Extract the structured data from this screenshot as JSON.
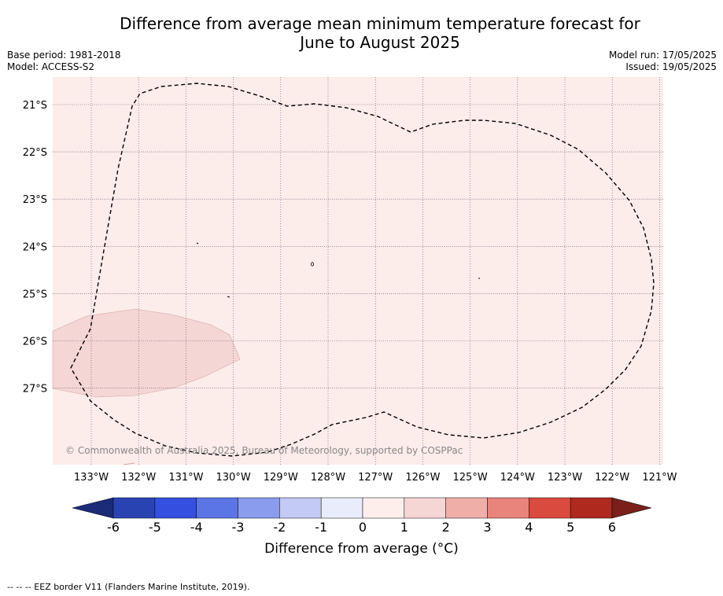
{
  "title_line1": "Difference from average mean minimum temperature forecast for",
  "title_line2": "June to August 2025",
  "base_period": "Base period: 1981-2018",
  "model": "Model: ACCESS-S2",
  "model_run": "Model run: 17/05/2025",
  "issued": "Issued: 19/05/2025",
  "copyright": "© Commonwealth of Australia 2025, Bureau of Meteorology, supported by COSPPac",
  "lat_ticks": [
    "21°S",
    "22°S",
    "23°S",
    "24°S",
    "25°S",
    "26°S",
    "27°S"
  ],
  "lon_ticks": [
    "133°W",
    "132°W",
    "131°W",
    "130°W",
    "129°W",
    "128°W",
    "127°W",
    "126°W",
    "125°W",
    "124°W",
    "123°W",
    "122°W",
    "121°W"
  ],
  "colorbar": {
    "label": "Difference from average (°C)",
    "ticks": [
      "-6",
      "-5",
      "-4",
      "-3",
      "-2",
      "-1",
      "0",
      "1",
      "2",
      "3",
      "4",
      "5",
      "6"
    ],
    "under_color": "#1b2b78",
    "over_color": "#7a1f1a",
    "colors": [
      "#2a43b3",
      "#3550e0",
      "#5b74e6",
      "#8a9ced",
      "#c3caf5",
      "#e9edfb",
      "#fdeeec",
      "#f5d6d4",
      "#efaea8",
      "#e8847c",
      "#da4a3e",
      "#b0291f"
    ]
  },
  "background_category": "0 to 1",
  "anomaly_region_category": "1 to 2",
  "footnote": "-- -- -- EEZ border V11 (Flanders Marine Institute, 2019)."
}
